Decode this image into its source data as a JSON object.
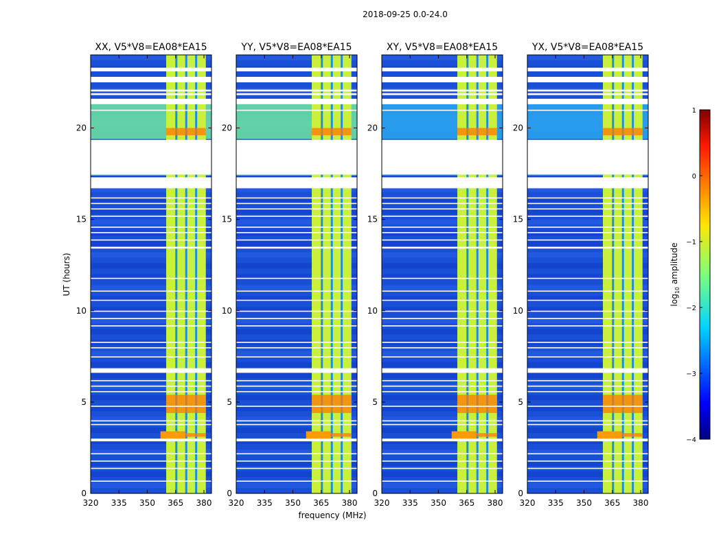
{
  "page": {
    "title": "2018-09-25 0.0-24.0"
  },
  "chart_data": {
    "type": "heatmap",
    "title": "2018-09-25 0.0-24.0",
    "xlabel": "frequency (MHz)",
    "ylabel": "UT (hours)",
    "xlim": [
      320,
      384
    ],
    "ylim": [
      0,
      24
    ],
    "xticks": [
      320,
      335,
      350,
      365,
      380
    ],
    "yticks": [
      0,
      5,
      10,
      15,
      20
    ],
    "panels": [
      {
        "name": "XX",
        "title": "XX, V5*V8=EA08*EA15"
      },
      {
        "name": "YY",
        "title": "YY, V5*V8=EA08*EA15"
      },
      {
        "name": "XY",
        "title": "XY, V5*V8=EA08*EA15"
      },
      {
        "name": "YX",
        "title": "YX, V5*V8=EA08*EA15"
      }
    ],
    "colorbar": {
      "label": "log₁₀ amplitude",
      "label_base": "log",
      "label_sub": "10",
      "label_rest": " amplitude",
      "range": [
        -4,
        1
      ],
      "ticks": [
        1,
        0,
        -1,
        -2,
        -3,
        -4
      ],
      "tick_labels": [
        "1",
        "0",
        "−1",
        "−2",
        "−3",
        "−4"
      ],
      "colormap": "jet"
    },
    "flagged_ut_gaps": [
      [
        23.1,
        23.3
      ],
      [
        22.5,
        22.8
      ],
      [
        22.0,
        22.1
      ],
      [
        21.8,
        21.9
      ],
      [
        21.3,
        21.6
      ],
      [
        19.35,
        17.45
      ],
      [
        16.7,
        17.3
      ],
      [
        13.5,
        13.4
      ],
      [
        6.85,
        6.6
      ],
      [
        3.0,
        2.85
      ]
    ],
    "rfi_band_mhz": [
      360,
      381
    ]
  }
}
